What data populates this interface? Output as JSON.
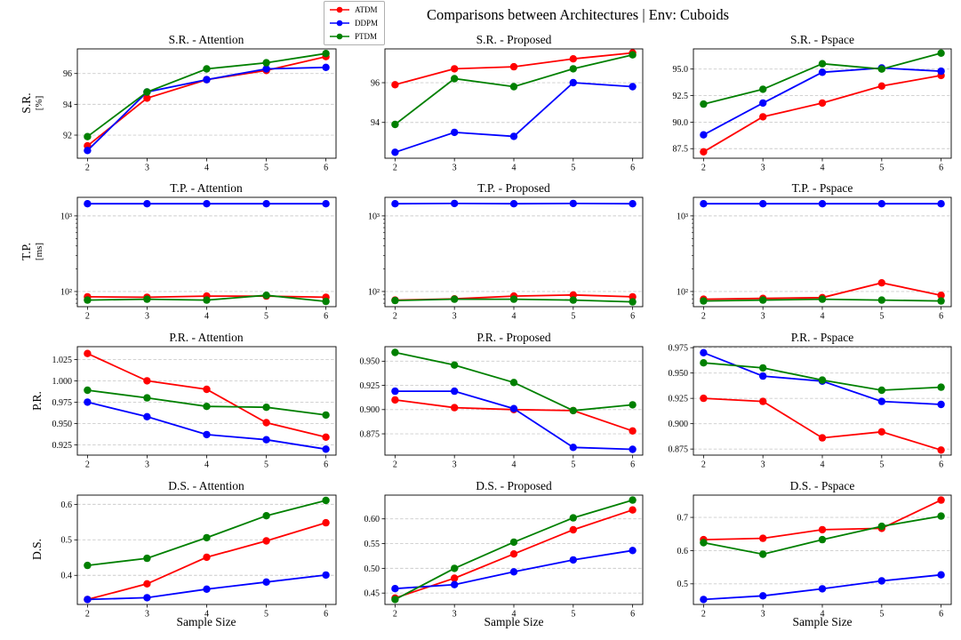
{
  "title": "Comparisons between Architectures | Env: Cuboids",
  "xlabel": "Sample Size",
  "legend": {
    "items": [
      {
        "label": "ATDM",
        "color": "#ff0000"
      },
      {
        "label": "DDPM",
        "color": "#0000ff"
      },
      {
        "label": "PTDM",
        "color": "#008000"
      }
    ]
  },
  "rows": [
    {
      "label_main": "S.R.",
      "label_unit": "[%]"
    },
    {
      "label_main": "T.P.",
      "label_unit": "[ms]"
    },
    {
      "label_main": "P.R.",
      "label_unit": ""
    },
    {
      "label_main": "D.S.",
      "label_unit": ""
    }
  ],
  "chart_data": [
    {
      "type": "line",
      "title": "S.R. - Attention",
      "row": 0,
      "col": 0,
      "yscale": "linear",
      "ylim": [
        90.5,
        97.6
      ],
      "yticks": [
        92,
        94,
        96
      ],
      "ytick_labels": [
        "92",
        "94",
        "96"
      ],
      "x": [
        2,
        3,
        4,
        5,
        6
      ],
      "xtick_labels": [
        "2",
        "3",
        "4",
        "5",
        "6"
      ],
      "series": [
        {
          "name": "ATDM",
          "color": "#ff0000",
          "values": [
            91.3,
            94.4,
            95.6,
            96.2,
            97.1
          ]
        },
        {
          "name": "DDPM",
          "color": "#0000ff",
          "values": [
            91.0,
            94.8,
            95.6,
            96.3,
            96.4
          ]
        },
        {
          "name": "PTDM",
          "color": "#008000",
          "values": [
            91.9,
            94.8,
            96.3,
            96.7,
            97.3
          ]
        }
      ]
    },
    {
      "type": "line",
      "title": "S.R. - Proposed",
      "row": 0,
      "col": 1,
      "yscale": "linear",
      "ylim": [
        92.2,
        97.7
      ],
      "yticks": [
        94,
        96
      ],
      "ytick_labels": [
        "94",
        "96"
      ],
      "x": [
        2,
        3,
        4,
        5,
        6
      ],
      "xtick_labels": [
        "2",
        "3",
        "4",
        "5",
        "6"
      ],
      "series": [
        {
          "name": "ATDM",
          "color": "#ff0000",
          "values": [
            95.9,
            96.7,
            96.8,
            97.2,
            97.5
          ]
        },
        {
          "name": "DDPM",
          "color": "#0000ff",
          "values": [
            92.5,
            93.5,
            93.3,
            96.0,
            95.8
          ]
        },
        {
          "name": "PTDM",
          "color": "#008000",
          "values": [
            93.9,
            96.2,
            95.8,
            96.7,
            97.4
          ]
        }
      ]
    },
    {
      "type": "line",
      "title": "S.R. - Pspace",
      "row": 0,
      "col": 2,
      "yscale": "linear",
      "ylim": [
        86.6,
        96.9
      ],
      "yticks": [
        87.5,
        90.0,
        92.5,
        95.0
      ],
      "ytick_labels": [
        "87.5",
        "90.0",
        "92.5",
        "95.0"
      ],
      "x": [
        2,
        3,
        4,
        5,
        6
      ],
      "xtick_labels": [
        "2",
        "3",
        "4",
        "5",
        "6"
      ],
      "series": [
        {
          "name": "ATDM",
          "color": "#ff0000",
          "values": [
            87.2,
            90.5,
            91.8,
            93.4,
            94.4
          ]
        },
        {
          "name": "DDPM",
          "color": "#0000ff",
          "values": [
            88.8,
            91.8,
            94.7,
            95.1,
            94.8
          ]
        },
        {
          "name": "PTDM",
          "color": "#008000",
          "values": [
            91.7,
            93.1,
            95.5,
            95.0,
            96.5
          ]
        }
      ]
    },
    {
      "type": "line",
      "title": "T.P. - Attention",
      "row": 1,
      "col": 0,
      "yscale": "log",
      "ylim": [
        63,
        1760
      ],
      "yticks": [
        100,
        1000
      ],
      "ytick_labels": [
        "10²",
        "10³"
      ],
      "x": [
        2,
        3,
        4,
        5,
        6
      ],
      "xtick_labels": [
        "2",
        "3",
        "4",
        "5",
        "6"
      ],
      "series": [
        {
          "name": "ATDM",
          "color": "#ff0000",
          "values": [
            85,
            84,
            87,
            87,
            84
          ]
        },
        {
          "name": "DDPM",
          "color": "#0000ff",
          "values": [
            1450,
            1450,
            1450,
            1450,
            1450
          ]
        },
        {
          "name": "PTDM",
          "color": "#008000",
          "values": [
            77,
            79,
            77,
            89,
            74
          ]
        }
      ]
    },
    {
      "type": "line",
      "title": "T.P. - Proposed",
      "row": 1,
      "col": 1,
      "yscale": "log",
      "ylim": [
        63,
        1760
      ],
      "yticks": [
        100,
        1000
      ],
      "ytick_labels": [
        "10²",
        "10³"
      ],
      "x": [
        2,
        3,
        4,
        5,
        6
      ],
      "xtick_labels": [
        "2",
        "3",
        "4",
        "5",
        "6"
      ],
      "series": [
        {
          "name": "ATDM",
          "color": "#ff0000",
          "values": [
            77,
            80,
            87,
            90,
            85
          ]
        },
        {
          "name": "DDPM",
          "color": "#0000ff",
          "values": [
            1450,
            1460,
            1450,
            1460,
            1450
          ]
        },
        {
          "name": "PTDM",
          "color": "#008000",
          "values": [
            76,
            79,
            79,
            77,
            73
          ]
        }
      ]
    },
    {
      "type": "line",
      "title": "T.P. - Pspace",
      "row": 1,
      "col": 2,
      "yscale": "log",
      "ylim": [
        63,
        1760
      ],
      "yticks": [
        100,
        1000
      ],
      "ytick_labels": [
        "10²",
        "10³"
      ],
      "x": [
        2,
        3,
        4,
        5,
        6
      ],
      "xtick_labels": [
        "2",
        "3",
        "4",
        "5",
        "6"
      ],
      "series": [
        {
          "name": "ATDM",
          "color": "#ff0000",
          "values": [
            79,
            81,
            83,
            130,
            89
          ]
        },
        {
          "name": "DDPM",
          "color": "#0000ff",
          "values": [
            1450,
            1450,
            1450,
            1450,
            1450
          ]
        },
        {
          "name": "PTDM",
          "color": "#008000",
          "values": [
            75,
            77,
            79,
            77,
            75
          ]
        }
      ]
    },
    {
      "type": "line",
      "title": "P.R. - Attention",
      "row": 2,
      "col": 0,
      "yscale": "linear",
      "ylim": [
        0.913,
        1.04
      ],
      "yticks": [
        0.925,
        0.95,
        0.975,
        1.0,
        1.025
      ],
      "ytick_labels": [
        "0.925",
        "0.950",
        "0.975",
        "1.000",
        "1.025"
      ],
      "x": [
        2,
        3,
        4,
        5,
        6
      ],
      "xtick_labels": [
        "2",
        "3",
        "4",
        "5",
        "6"
      ],
      "series": [
        {
          "name": "ATDM",
          "color": "#ff0000",
          "values": [
            1.032,
            1.0,
            0.99,
            0.951,
            0.934
          ]
        },
        {
          "name": "DDPM",
          "color": "#0000ff",
          "values": [
            0.975,
            0.958,
            0.937,
            0.931,
            0.92
          ]
        },
        {
          "name": "PTDM",
          "color": "#008000",
          "values": [
            0.989,
            0.98,
            0.97,
            0.969,
            0.96
          ]
        }
      ]
    },
    {
      "type": "line",
      "title": "P.R. - Proposed",
      "row": 2,
      "col": 1,
      "yscale": "linear",
      "ylim": [
        0.853,
        0.965
      ],
      "yticks": [
        0.875,
        0.9,
        0.925,
        0.95
      ],
      "ytick_labels": [
        "0.875",
        "0.900",
        "0.925",
        "0.950"
      ],
      "x": [
        2,
        3,
        4,
        5,
        6
      ],
      "xtick_labels": [
        "2",
        "3",
        "4",
        "5",
        "6"
      ],
      "series": [
        {
          "name": "ATDM",
          "color": "#ff0000",
          "values": [
            0.91,
            0.902,
            0.9,
            0.899,
            0.878
          ]
        },
        {
          "name": "DDPM",
          "color": "#0000ff",
          "values": [
            0.919,
            0.919,
            0.901,
            0.861,
            0.859
          ]
        },
        {
          "name": "PTDM",
          "color": "#008000",
          "values": [
            0.959,
            0.946,
            0.928,
            0.899,
            0.905
          ]
        }
      ]
    },
    {
      "type": "line",
      "title": "P.R. - Pspace",
      "row": 2,
      "col": 2,
      "yscale": "linear",
      "ylim": [
        0.869,
        0.976
      ],
      "yticks": [
        0.875,
        0.9,
        0.925,
        0.95,
        0.975
      ],
      "ytick_labels": [
        "0.875",
        "0.900",
        "0.925",
        "0.950",
        "0.975"
      ],
      "x": [
        2,
        3,
        4,
        5,
        6
      ],
      "xtick_labels": [
        "2",
        "3",
        "4",
        "5",
        "6"
      ],
      "series": [
        {
          "name": "ATDM",
          "color": "#ff0000",
          "values": [
            0.925,
            0.922,
            0.886,
            0.892,
            0.874
          ]
        },
        {
          "name": "DDPM",
          "color": "#0000ff",
          "values": [
            0.97,
            0.947,
            0.942,
            0.922,
            0.919
          ]
        },
        {
          "name": "PTDM",
          "color": "#008000",
          "values": [
            0.96,
            0.955,
            0.943,
            0.933,
            0.936
          ]
        }
      ]
    },
    {
      "type": "line",
      "title": "D.S. - Attention",
      "row": 3,
      "col": 0,
      "yscale": "linear",
      "ylim": [
        0.318,
        0.626
      ],
      "yticks": [
        0.4,
        0.5,
        0.6
      ],
      "ytick_labels": [
        "0.4",
        "0.5",
        "0.6"
      ],
      "x": [
        2,
        3,
        4,
        5,
        6
      ],
      "xtick_labels": [
        "2",
        "3",
        "4",
        "5",
        "6"
      ],
      "series": [
        {
          "name": "ATDM",
          "color": "#ff0000",
          "values": [
            0.332,
            0.376,
            0.451,
            0.497,
            0.548
          ]
        },
        {
          "name": "DDPM",
          "color": "#0000ff",
          "values": [
            0.332,
            0.337,
            0.361,
            0.381,
            0.401
          ]
        },
        {
          "name": "PTDM",
          "color": "#008000",
          "values": [
            0.428,
            0.448,
            0.506,
            0.568,
            0.611
          ]
        }
      ]
    },
    {
      "type": "line",
      "title": "D.S. - Proposed",
      "row": 3,
      "col": 1,
      "yscale": "linear",
      "ylim": [
        0.427,
        0.648
      ],
      "yticks": [
        0.45,
        0.5,
        0.55,
        0.6
      ],
      "ytick_labels": [
        "0.45",
        "0.50",
        "0.55",
        "0.60"
      ],
      "x": [
        2,
        3,
        4,
        5,
        6
      ],
      "xtick_labels": [
        "2",
        "3",
        "4",
        "5",
        "6"
      ],
      "series": [
        {
          "name": "ATDM",
          "color": "#ff0000",
          "values": [
            0.44,
            0.48,
            0.529,
            0.578,
            0.618
          ]
        },
        {
          "name": "DDPM",
          "color": "#0000ff",
          "values": [
            0.459,
            0.467,
            0.493,
            0.517,
            0.536
          ]
        },
        {
          "name": "PTDM",
          "color": "#008000",
          "values": [
            0.437,
            0.5,
            0.553,
            0.602,
            0.638
          ]
        }
      ]
    },
    {
      "type": "line",
      "title": "D.S. - Pspace",
      "row": 3,
      "col": 2,
      "yscale": "linear",
      "ylim": [
        0.438,
        0.767
      ],
      "yticks": [
        0.5,
        0.6,
        0.7
      ],
      "ytick_labels": [
        "0.5",
        "0.6",
        "0.7"
      ],
      "x": [
        2,
        3,
        4,
        5,
        6
      ],
      "xtick_labels": [
        "2",
        "3",
        "4",
        "5",
        "6"
      ],
      "series": [
        {
          "name": "ATDM",
          "color": "#ff0000",
          "values": [
            0.633,
            0.637,
            0.663,
            0.667,
            0.752
          ]
        },
        {
          "name": "DDPM",
          "color": "#0000ff",
          "values": [
            0.453,
            0.464,
            0.485,
            0.509,
            0.527
          ]
        },
        {
          "name": "PTDM",
          "color": "#008000",
          "values": [
            0.624,
            0.589,
            0.633,
            0.673,
            0.704
          ]
        }
      ]
    }
  ]
}
